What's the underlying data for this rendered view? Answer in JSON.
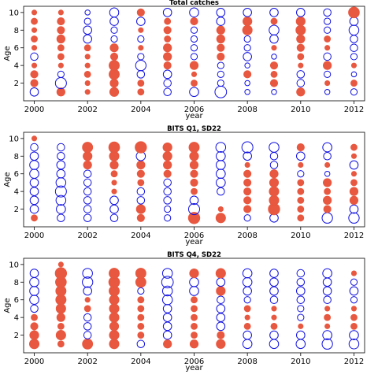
{
  "chart_data": [
    {
      "type": "scatter",
      "title": "Total catches",
      "xlabel": "year",
      "ylabel": "Age",
      "xlim": [
        1999.6,
        2012.4
      ],
      "ylim": [
        0,
        10.7
      ],
      "xticks": [
        2000,
        2002,
        2004,
        2006,
        2008,
        2010,
        2012
      ],
      "yticks": [
        2,
        4,
        6,
        8,
        10
      ],
      "marker_meaning": "filled = positive residual, open = negative residual, size = magnitude",
      "years": [
        2000,
        2001,
        2002,
        2003,
        2004,
        2005,
        2006,
        2007,
        2008,
        2009,
        2010,
        2011,
        2012
      ],
      "ages": [
        1,
        2,
        3,
        4,
        5,
        6,
        7,
        8,
        9,
        10
      ],
      "residuals": [
        [
          -0.4,
          0.4,
          0.1,
          0.5,
          0.2,
          -0.3,
          -0.5,
          -0.9,
          -0.1,
          -0.1,
          0.4,
          -0.1,
          -0.2
        ],
        [
          0.3,
          -0.8,
          0.1,
          0.4,
          0.2,
          -0.3,
          0.2,
          -0.2,
          -0.1,
          0.3,
          -0.3,
          0.1,
          0.2
        ],
        [
          0.3,
          -0.2,
          0.2,
          0.7,
          -0.3,
          -0.4,
          0.1,
          -0.2,
          0.3,
          0.2,
          -0.3,
          -0.2,
          -0.1
        ],
        [
          0.1,
          0.1,
          0.1,
          0.7,
          -0.7,
          0.3,
          0.4,
          -0.2,
          -0.1,
          0.3,
          0.1,
          0.4,
          0.1
        ],
        [
          -0.3,
          0.2,
          0.1,
          0.3,
          -0.2,
          0.4,
          -0.2,
          0.3,
          -0.4,
          -0.1,
          0.2,
          -0.3,
          -0.2
        ],
        [
          0.1,
          0.2,
          0.2,
          0.4,
          0.1,
          0.4,
          -0.2,
          0.3,
          -0.2,
          0.1,
          0.3,
          0.1,
          -0.3
        ],
        [
          0.2,
          0.4,
          -0.4,
          -0.2,
          -0.2,
          0.2,
          -0.2,
          0.4,
          -0.2,
          -0.4,
          0.4,
          0.2,
          -0.3
        ],
        [
          0.1,
          0.3,
          -0.4,
          -0.2,
          0.1,
          0.3,
          -0.2,
          0.4,
          0.6,
          -0.6,
          0.6,
          -0.2,
          -0.6
        ],
        [
          0.2,
          0.3,
          -0.2,
          -0.4,
          -0.4,
          0.2,
          0.3,
          -0.4,
          0.5,
          0.2,
          0.5,
          -0.2,
          -0.4
        ],
        [
          0.1,
          0.1,
          -0.1,
          -0.5,
          0.3,
          -0.4,
          -0.5,
          -0.4,
          -0.4,
          -0.4,
          -0.4,
          -0.3,
          0.8
        ]
      ]
    },
    {
      "type": "scatter",
      "title": "BITS Q1, SD22",
      "xlabel": "year",
      "ylabel": "Age",
      "xlim": [
        1999.6,
        2012.4
      ],
      "ylim": [
        0,
        10.7
      ],
      "xticks": [
        2000,
        2002,
        2004,
        2006,
        2008,
        2010,
        2012
      ],
      "yticks": [
        2,
        4,
        6,
        8,
        10
      ],
      "marker_meaning": "filled = positive residual, open = negative residual, size = magnitude",
      "years": [
        2000,
        2001,
        2002,
        2003,
        2004,
        2005,
        2006,
        2007,
        2008,
        2009,
        2010,
        2011,
        2012
      ],
      "ages": [
        1,
        2,
        3,
        4,
        5,
        6,
        7,
        8,
        9,
        10
      ],
      "residuals": [
        [
          0.2,
          -0.3,
          -0.3,
          -0.3,
          0.3,
          -0.2,
          0.9,
          0.6,
          -0.2,
          -0.4,
          0.2,
          -0.7,
          -0.7
        ],
        [
          -0.4,
          -0.5,
          -0.3,
          -0.4,
          0.5,
          -0.2,
          -0.8,
          0.1,
          0.3,
          0.9,
          0.2,
          0.3,
          -0.4
        ],
        [
          -0.4,
          -0.6,
          -0.3,
          -0.4,
          -0.3,
          -0.3,
          -0.4,
          null,
          0.3,
          0.6,
          0.2,
          0.4,
          0.4
        ],
        [
          -0.4,
          -0.8,
          -0.3,
          0.1,
          -0.3,
          -0.3,
          0.2,
          -0.3,
          0.3,
          0.6,
          0.2,
          0.2,
          0.4
        ],
        [
          -0.4,
          -0.6,
          -0.3,
          0.1,
          0.2,
          -0.3,
          0.3,
          -0.5,
          0.3,
          0.5,
          0.2,
          0.4,
          0.2
        ],
        [
          -0.5,
          -0.4,
          -0.3,
          0.2,
          0.3,
          0.3,
          0.3,
          -0.5,
          0.3,
          0.4,
          -0.2,
          -0.1,
          0.1
        ],
        [
          -0.5,
          -0.4,
          0.4,
          0.4,
          0.4,
          0.4,
          0.4,
          -0.5,
          0.1,
          -0.3,
          0.1,
          0.1,
          -0.4
        ],
        [
          -0.4,
          -0.3,
          0.5,
          0.6,
          -0.5,
          0.5,
          0.5,
          -0.5,
          -0.4,
          -0.3,
          -0.4,
          -0.3,
          0.1
        ],
        [
          -0.3,
          -0.3,
          0.7,
          0.8,
          0.9,
          0.5,
          0.7,
          -0.6,
          -0.8,
          -0.6,
          0.3,
          -0.5,
          0.2
        ],
        [
          0.1,
          null,
          null,
          null,
          null,
          null,
          null,
          null,
          null,
          null,
          null,
          null,
          null
        ]
      ]
    },
    {
      "type": "scatter",
      "title": "BITS Q4, SD22",
      "xlabel": "year",
      "ylabel": "Age",
      "xlim": [
        1999.6,
        2012.4
      ],
      "ylim": [
        0,
        10.7
      ],
      "xticks": [
        2000,
        2002,
        2004,
        2006,
        2008,
        2010,
        2012
      ],
      "yticks": [
        2,
        4,
        6,
        8,
        10
      ],
      "marker_meaning": "filled = positive residual, open = negative residual, size = magnitude",
      "years": [
        2000,
        2001,
        2002,
        2003,
        2004,
        2005,
        2006,
        2007,
        2008,
        2009,
        2010,
        2011,
        2012
      ],
      "ages": [
        1,
        2,
        3,
        4,
        5,
        6,
        7,
        8,
        9,
        10
      ],
      "residuals": [
        [
          0.6,
          0.2,
          0.7,
          0.6,
          -0.3,
          0.4,
          0.4,
          0.5,
          -0.5,
          -0.5,
          -0.5,
          -0.7,
          -0.6
        ],
        [
          0.5,
          0.6,
          -0.3,
          0.6,
          0.2,
          -0.4,
          0.2,
          0.3,
          -0.4,
          -0.4,
          -0.4,
          -0.5,
          -0.5
        ],
        [
          0.3,
          0.2,
          -0.3,
          0.5,
          0.2,
          -0.4,
          0.2,
          -0.4,
          0.2,
          0.2,
          0.1,
          0.1,
          0.2
        ],
        [
          0.2,
          0.4,
          -0.3,
          0.6,
          0.2,
          -0.4,
          0.2,
          -0.4,
          0.1,
          0.1,
          -0.2,
          0.2,
          0.2
        ],
        [
          -0.3,
          0.6,
          0.2,
          0.6,
          0.2,
          -0.4,
          0.2,
          -0.4,
          0.2,
          0.1,
          -0.2,
          0.1,
          0.1
        ],
        [
          -0.5,
          0.7,
          0.1,
          0.6,
          0.2,
          -0.6,
          0.2,
          -0.3,
          -0.2,
          -0.3,
          -0.3,
          -0.3,
          -0.2
        ],
        [
          -0.5,
          0.7,
          -0.4,
          0.7,
          -0.2,
          -0.6,
          -0.5,
          0.5,
          -0.4,
          -0.4,
          -0.4,
          -0.4,
          -0.4
        ],
        [
          -0.5,
          0.8,
          -0.7,
          0.8,
          0.7,
          -0.9,
          -0.5,
          -0.4,
          -0.5,
          -0.4,
          -0.3,
          -0.4,
          -0.2
        ],
        [
          -0.4,
          0.9,
          -0.6,
          0.7,
          0.7,
          -0.6,
          0.5,
          0.6,
          -0.5,
          -0.4,
          -0.3,
          -0.5,
          0.1
        ],
        [
          null,
          0.1,
          null,
          null,
          null,
          null,
          null,
          null,
          null,
          null,
          null,
          null,
          null
        ]
      ]
    }
  ]
}
